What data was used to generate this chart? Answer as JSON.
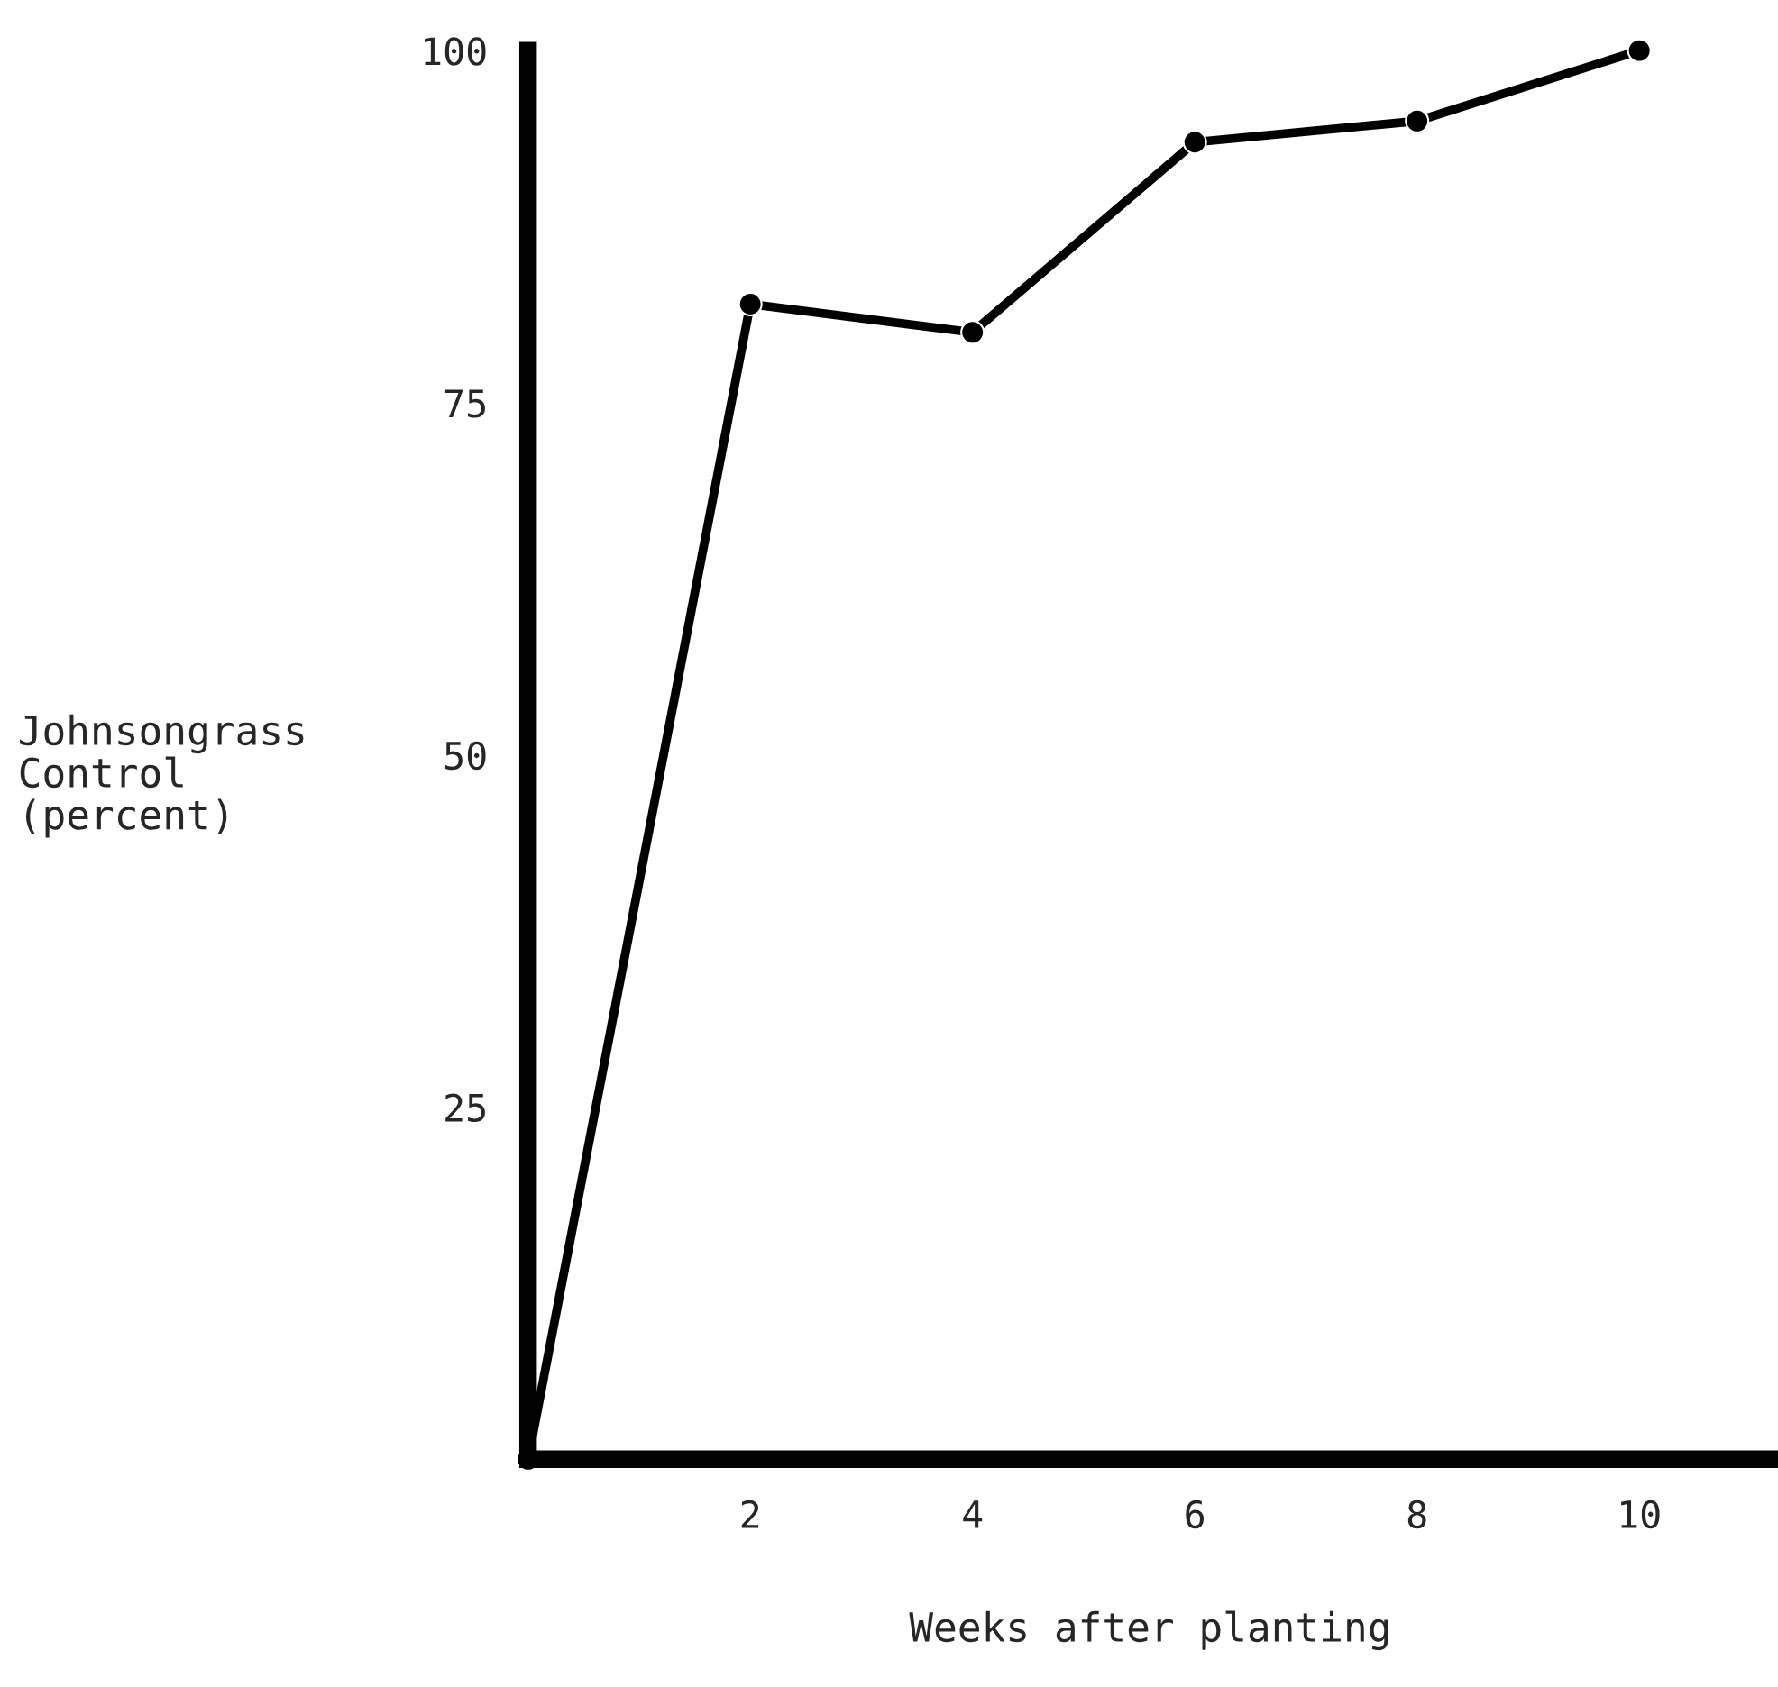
{
  "chart_data": {
    "type": "line",
    "xlabel": "Weeks after planting",
    "ylabel": "Johnsongrass\nControl\n(percent)",
    "x": [
      0,
      2,
      4,
      6,
      8,
      10
    ],
    "series": [
      {
        "color": "#000000",
        "values": [
          0,
          82,
          80,
          93.5,
          95,
          100
        ]
      }
    ],
    "xlim": [
      0,
      11.2
    ],
    "xticks": [
      2,
      4,
      6,
      8,
      10
    ],
    "ylim": [
      0,
      100
    ],
    "yticks": [
      25,
      50,
      75,
      100
    ],
    "grid": false,
    "legend": false,
    "marker": "circle",
    "line_style": "solid"
  }
}
